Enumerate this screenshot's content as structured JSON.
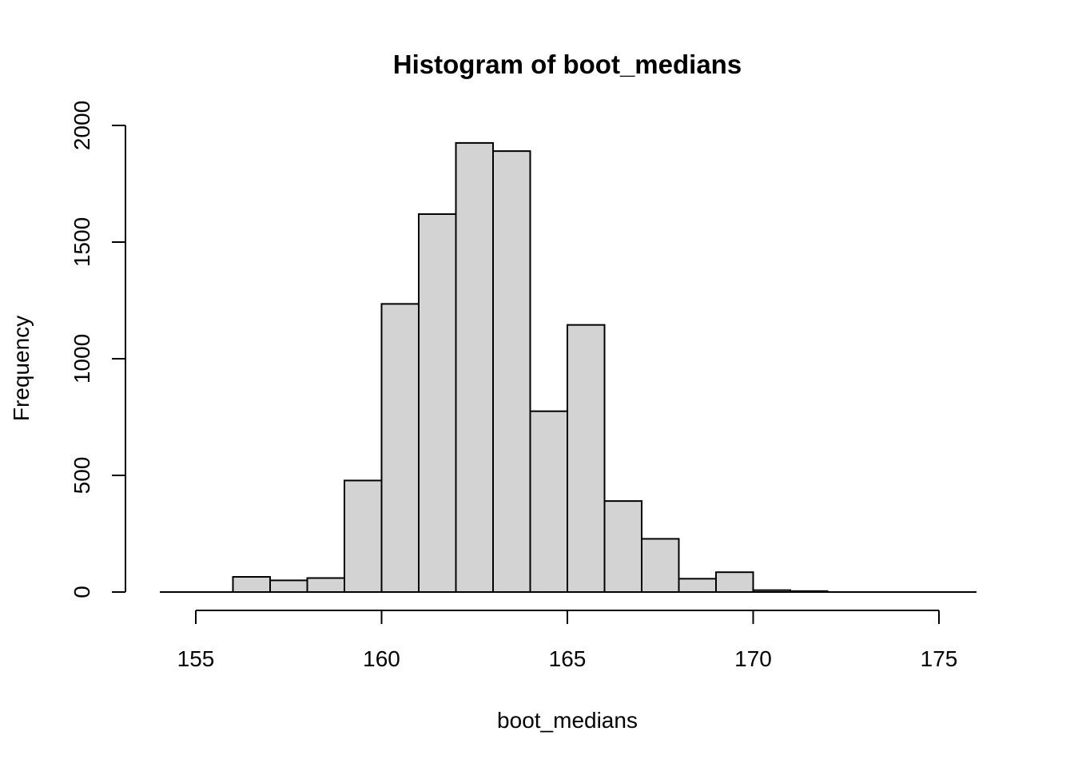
{
  "chart_data": {
    "type": "bar",
    "title": "Histogram of boot_medians",
    "xlabel": "boot_medians",
    "ylabel": "Frequency",
    "bar_fill": "#d3d3d3",
    "bar_stroke": "#000000",
    "bin_edges": [
      155,
      156,
      157,
      158,
      159,
      160,
      161,
      162,
      163,
      164,
      165,
      166,
      167,
      168,
      169,
      170,
      171,
      172,
      173,
      174,
      175
    ],
    "values": [
      0,
      65,
      50,
      60,
      478,
      1235,
      1620,
      1925,
      1890,
      775,
      1145,
      390,
      228,
      57,
      85,
      8,
      4,
      0,
      0,
      0
    ],
    "xlim": [
      155,
      175
    ],
    "ylim": [
      0,
      2000
    ],
    "x_ticks": [
      155,
      160,
      165,
      170,
      175
    ],
    "y_ticks": [
      0,
      500,
      1000,
      1500,
      2000
    ],
    "grid": false
  }
}
